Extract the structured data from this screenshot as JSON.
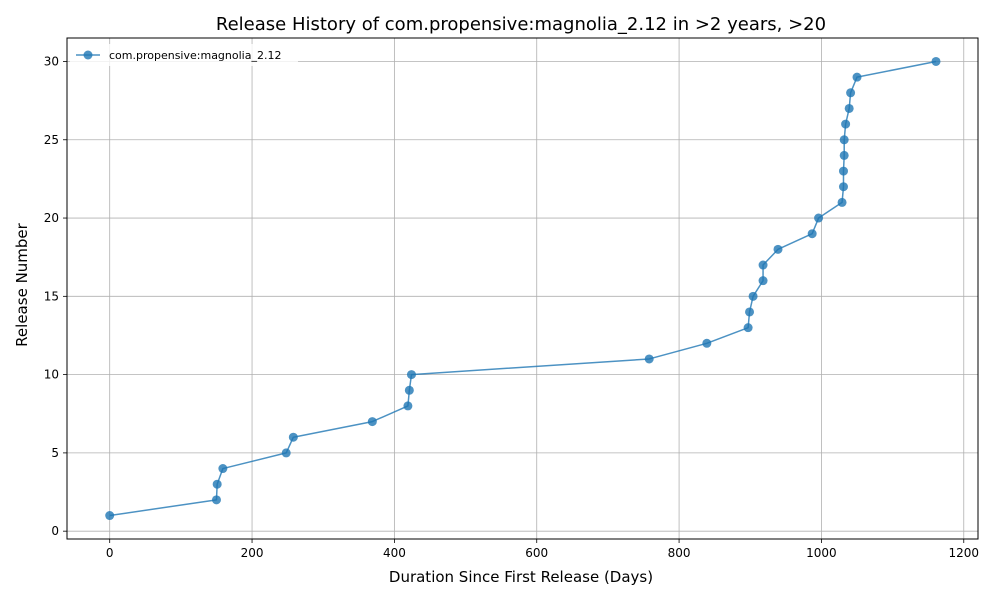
{
  "chart_data": {
    "type": "line",
    "title": "Release History of com.propensive:magnolia_2.12 in >2 years, >20",
    "xlabel": "Duration Since First Release (Days)",
    "ylabel": "Release Number",
    "xlim": [
      -60,
      1220
    ],
    "ylim": [
      -0.5,
      31.5
    ],
    "xticks": [
      0,
      200,
      400,
      600,
      800,
      1000,
      1200
    ],
    "yticks": [
      0,
      5,
      10,
      15,
      20,
      25,
      30
    ],
    "grid": true,
    "legend_position": "top-left",
    "series": [
      {
        "name": "com.propensive:magnolia_2.12",
        "color": "#1f77b4",
        "marker": "circle",
        "x": [
          0,
          150,
          151,
          159,
          248,
          258,
          369,
          419,
          421,
          424,
          758,
          839,
          897,
          899,
          904,
          918,
          918,
          939,
          987,
          996,
          1029,
          1031,
          1031,
          1032,
          1032,
          1034,
          1039,
          1041,
          1050,
          1161
        ],
        "y": [
          1,
          2,
          3,
          4,
          5,
          6,
          7,
          8,
          9,
          10,
          11,
          12,
          13,
          14,
          15,
          16,
          17,
          18,
          19,
          20,
          21,
          22,
          23,
          24,
          25,
          26,
          27,
          28,
          29,
          30
        ]
      }
    ]
  }
}
